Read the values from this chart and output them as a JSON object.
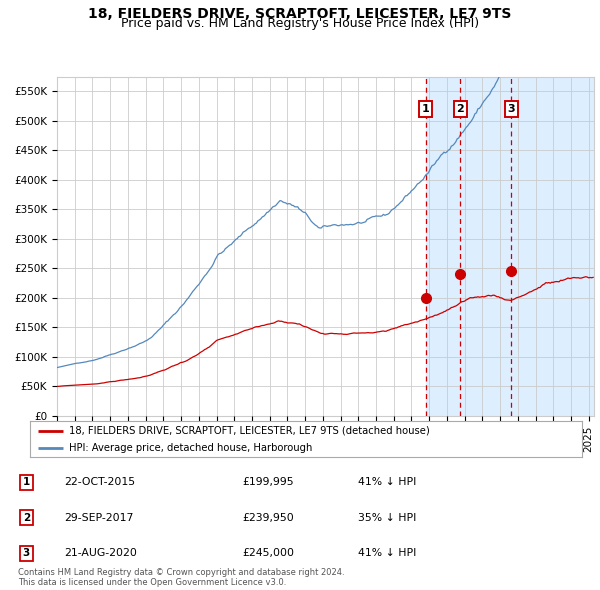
{
  "title": "18, FIELDERS DRIVE, SCRAPTOFT, LEICESTER, LE7 9TS",
  "subtitle": "Price paid vs. HM Land Registry's House Price Index (HPI)",
  "ylabel_ticks": [
    "£0",
    "£50K",
    "£100K",
    "£150K",
    "£200K",
    "£250K",
    "£300K",
    "£350K",
    "£400K",
    "£450K",
    "£500K",
    "£550K"
  ],
  "ytick_values": [
    0,
    50000,
    100000,
    150000,
    200000,
    250000,
    300000,
    350000,
    400000,
    450000,
    500000,
    550000
  ],
  "hpi_color": "#5588bb",
  "price_color": "#cc0000",
  "marker_color": "#cc0000",
  "dashed_line_color": "#cc0000",
  "shade_color": "#ddeeff",
  "legend_label_red": "18, FIELDERS DRIVE, SCRAPTOFT, LEICESTER, LE7 9TS (detached house)",
  "legend_label_blue": "HPI: Average price, detached house, Harborough",
  "transactions": [
    {
      "num": 1,
      "date": "22-OCT-2015",
      "price": 199995,
      "hpi_pct": "41% ↓ HPI",
      "x_year": 2015.81
    },
    {
      "num": 2,
      "date": "29-SEP-2017",
      "price": 239950,
      "hpi_pct": "35% ↓ HPI",
      "x_year": 2017.75
    },
    {
      "num": 3,
      "date": "21-AUG-2020",
      "price": 245000,
      "hpi_pct": "41% ↓ HPI",
      "x_year": 2020.64
    }
  ],
  "footer": "Contains HM Land Registry data © Crown copyright and database right 2024.\nThis data is licensed under the Open Government Licence v3.0.",
  "xlim": [
    1995.0,
    2025.3
  ],
  "ylim": [
    0,
    575000
  ],
  "background_color": "#ffffff",
  "grid_color": "#cccccc",
  "title_fontsize": 10,
  "subtitle_fontsize": 9,
  "tick_fontsize": 7.5
}
